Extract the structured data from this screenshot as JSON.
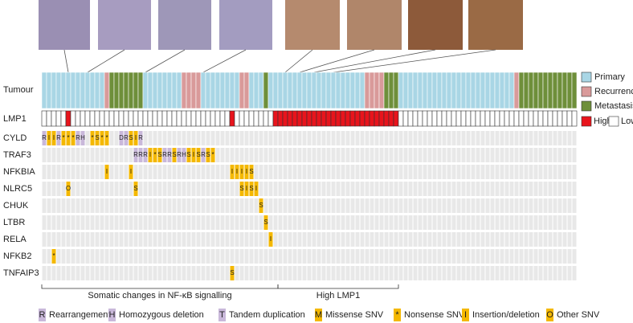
{
  "row_labels": {
    "tumour": "Tumour",
    "lmp1": "LMP1"
  },
  "tumour_legend": [
    {
      "label": "Primary",
      "color": "#a9d6e5"
    },
    {
      "label": "Recurrence",
      "color": "#d99a9a"
    },
    {
      "label": "Metastasis",
      "color": "#6e8f3a"
    }
  ],
  "tumour_runs": [
    [
      0,
      13
    ],
    [
      1,
      1
    ],
    [
      2,
      7
    ],
    [
      0,
      8
    ],
    [
      1,
      4
    ],
    [
      0,
      6
    ],
    [
      0,
      2
    ],
    [
      1,
      2
    ],
    [
      0,
      3
    ],
    [
      2,
      1
    ],
    [
      0,
      1
    ],
    [
      0,
      19
    ],
    [
      1,
      4
    ],
    [
      2,
      3
    ],
    [
      0,
      24
    ],
    [
      1,
      1
    ],
    [
      2,
      12
    ]
  ],
  "lmp1_legend": [
    {
      "label": "High",
      "color": "#e8141c"
    },
    {
      "label": "Low",
      "color": "#ffffff"
    }
  ],
  "lmp1_runs": [
    [
      1,
      5
    ],
    [
      0,
      1
    ],
    [
      1,
      33
    ],
    [
      0,
      1
    ],
    [
      1,
      8
    ],
    [
      0,
      26
    ],
    [
      1,
      37
    ]
  ],
  "colors": {
    "R": "#c9b8da",
    "H": "#c9b8da",
    "T": "#c9b8da",
    "D": "#c9b8da",
    "M": "#f4b800",
    "*": "#f4b800",
    "I": "#f4b800",
    "O": "#f4b800",
    "S": "#f4b800"
  },
  "genes": [
    {
      "name": "CYLD",
      "alterations": [
        {
          "col": 0,
          "code": "R"
        },
        {
          "col": 1,
          "code": "I"
        },
        {
          "col": 2,
          "code": "I"
        },
        {
          "col": 3,
          "code": "R"
        },
        {
          "col": 4,
          "code": "*"
        },
        {
          "col": 5,
          "code": "*"
        },
        {
          "col": 6,
          "code": "*"
        },
        {
          "col": 7,
          "code": "R"
        },
        {
          "col": 8,
          "code": "H"
        },
        {
          "col": 10,
          "code": "*"
        },
        {
          "col": 11,
          "code": "S"
        },
        {
          "col": 12,
          "code": "*"
        },
        {
          "col": 13,
          "code": "*"
        },
        {
          "col": 16,
          "code": "D"
        },
        {
          "col": 17,
          "code": "R"
        },
        {
          "col": 18,
          "code": "S"
        },
        {
          "col": 19,
          "code": "I"
        },
        {
          "col": 20,
          "code": "R"
        }
      ]
    },
    {
      "name": "TRAF3",
      "alterations": [
        {
          "col": 19,
          "code": "R"
        },
        {
          "col": 20,
          "code": "R"
        },
        {
          "col": 21,
          "code": "R"
        },
        {
          "col": 22,
          "code": "I"
        },
        {
          "col": 23,
          "code": "*"
        },
        {
          "col": 24,
          "code": "S"
        },
        {
          "col": 25,
          "code": "R"
        },
        {
          "col": 26,
          "code": "R"
        },
        {
          "col": 27,
          "code": "S"
        },
        {
          "col": 28,
          "code": "R"
        },
        {
          "col": 29,
          "code": "H"
        },
        {
          "col": 30,
          "code": "S"
        },
        {
          "col": 31,
          "code": "I"
        },
        {
          "col": 32,
          "code": "S"
        },
        {
          "col": 33,
          "code": "R"
        },
        {
          "col": 34,
          "code": "S"
        },
        {
          "col": 35,
          "code": "*"
        }
      ]
    },
    {
      "name": "NFKBIA",
      "alterations": [
        {
          "col": 13,
          "code": "I"
        },
        {
          "col": 18,
          "code": "I"
        },
        {
          "col": 39,
          "code": "I"
        },
        {
          "col": 40,
          "code": "I"
        },
        {
          "col": 41,
          "code": "I"
        },
        {
          "col": 42,
          "code": "I"
        },
        {
          "col": 43,
          "code": "S"
        }
      ]
    },
    {
      "name": "NLRC5",
      "alterations": [
        {
          "col": 5,
          "code": "O"
        },
        {
          "col": 19,
          "code": "S"
        },
        {
          "col": 41,
          "code": "S"
        },
        {
          "col": 42,
          "code": "I"
        },
        {
          "col": 43,
          "code": "S"
        },
        {
          "col": 44,
          "code": "I"
        }
      ]
    },
    {
      "name": "CHUK",
      "alterations": [
        {
          "col": 45,
          "code": "S"
        }
      ]
    },
    {
      "name": "LTBR",
      "alterations": [
        {
          "col": 46,
          "code": "S"
        }
      ]
    },
    {
      "name": "RELA",
      "alterations": [
        {
          "col": 47,
          "code": "I"
        }
      ]
    },
    {
      "name": "NFKB2",
      "alterations": [
        {
          "col": 2,
          "code": "*"
        }
      ]
    },
    {
      "name": "TNFAIP3",
      "alterations": [
        {
          "col": 39,
          "code": "S"
        }
      ]
    }
  ],
  "brackets": [
    "Somatic changes in NF-κB signalling",
    "High LMP1"
  ],
  "legend": [
    {
      "code": "R",
      "label": "Rearrangement"
    },
    {
      "code": "H",
      "label": "Homozygous deletion"
    },
    {
      "code": "T",
      "label": "Tandem duplication"
    },
    {
      "code": "M",
      "label": "Missense SNV"
    },
    {
      "code": "*",
      "label": "Nonsense SNV"
    },
    {
      "code": "I",
      "label": "Insertion/deletion"
    },
    {
      "code": "O",
      "label": "Other SNV"
    }
  ]
}
